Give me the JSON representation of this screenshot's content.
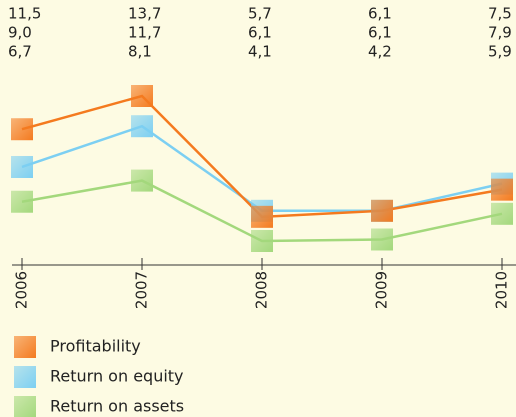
{
  "chart_data": {
    "type": "line",
    "categories": [
      "2006",
      "2007",
      "2008",
      "2009",
      "2010"
    ],
    "series": [
      {
        "name": "Profitability",
        "color": "#f47a1f",
        "values": [
          11.5,
          13.7,
          5.7,
          6.1,
          7.5
        ],
        "value_labels": [
          "11,5",
          "13,7",
          "5,7",
          "6,1",
          "7,5"
        ]
      },
      {
        "name": "Return on equity",
        "color": "#7ccff2",
        "values": [
          9.0,
          11.7,
          6.1,
          6.1,
          7.9
        ],
        "value_labels": [
          "9,0",
          "11,7",
          "6,1",
          "6,1",
          "7,9"
        ]
      },
      {
        "name": "Return on assets",
        "color": "#a3d87c",
        "values": [
          6.7,
          8.1,
          4.1,
          4.2,
          5.9
        ],
        "value_labels": [
          "6,7",
          "8,1",
          "4,1",
          "4,2",
          "5,9"
        ]
      }
    ]
  }
}
